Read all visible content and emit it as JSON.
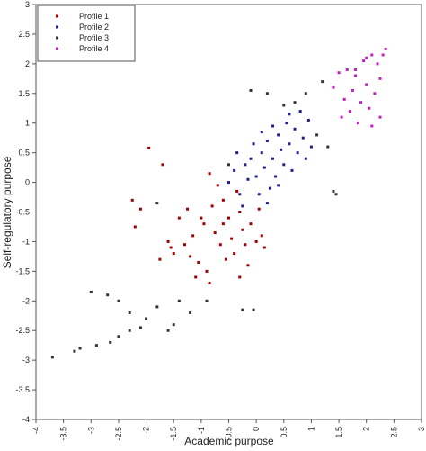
{
  "chart_data": {
    "type": "scatter",
    "x_label": "Academic purpose",
    "y_label": "Self-regulatory purpose",
    "xlim": [
      -4,
      3
    ],
    "ylim": [
      -4,
      3
    ],
    "xticks": [
      -4,
      -3.5,
      -3,
      -2.5,
      -2,
      -1.5,
      -1,
      -0.5,
      0,
      0.5,
      1,
      1.5,
      2,
      2.5,
      3
    ],
    "yticks": [
      -4,
      -3.5,
      -3,
      -2.5,
      -2,
      -1.5,
      -1,
      -0.5,
      0,
      0.5,
      1,
      1.5,
      2,
      2.5,
      3
    ],
    "legend": "upper-left",
    "series": [
      {
        "name": "Profile 1",
        "color": "#a00000",
        "x": [
          -1.95,
          -1.7,
          -2.25,
          -2.1,
          -2.2,
          -1.6,
          -1.55,
          -1.75,
          -1.5,
          -1.3,
          -1.2,
          -1.05,
          -0.9,
          -1.1,
          -0.85,
          -1.0,
          -0.95,
          -0.8,
          -0.75,
          -0.6,
          -0.5,
          -0.45,
          -0.4,
          -0.3,
          -0.25,
          -0.2,
          -0.15,
          -0.1,
          0.0,
          0.1,
          0.15,
          -0.65,
          -0.55,
          -0.35,
          -0.7,
          -0.85,
          -1.15,
          -1.25,
          -0.3,
          0.05,
          -0.6,
          -1.4
        ],
        "values": [
          0.58,
          0.3,
          -0.3,
          -0.45,
          -0.75,
          -1.0,
          -1.1,
          -1.3,
          -1.2,
          -1.05,
          -1.25,
          -1.35,
          -1.5,
          -1.6,
          -1.7,
          -0.6,
          -0.7,
          -0.4,
          -0.85,
          -0.3,
          -0.6,
          -0.95,
          -1.2,
          -0.5,
          -0.8,
          -1.05,
          -1.4,
          -0.7,
          -1.0,
          -0.9,
          -1.1,
          -1.05,
          -1.3,
          -0.15,
          -0.05,
          0.15,
          -0.9,
          -0.45,
          -1.6,
          -0.45,
          -0.7,
          -0.6
        ]
      },
      {
        "name": "Profile 2",
        "color": "#20208c",
        "x": [
          -0.5,
          -0.4,
          -0.3,
          -0.2,
          -0.15,
          -0.1,
          0.0,
          0.05,
          0.1,
          0.15,
          0.2,
          0.25,
          0.3,
          0.35,
          0.4,
          0.45,
          0.5,
          0.55,
          0.6,
          0.65,
          0.7,
          0.75,
          0.8,
          0.85,
          0.9,
          0.95,
          1.0,
          -0.05,
          0.2,
          -0.25,
          0.4,
          0.1,
          0.6,
          -0.35,
          0.3
        ],
        "values": [
          0.0,
          0.2,
          -0.2,
          0.3,
          0.05,
          0.4,
          0.1,
          -0.2,
          0.5,
          0.25,
          0.7,
          -0.1,
          0.4,
          0.1,
          0.8,
          0.55,
          0.3,
          1.0,
          0.65,
          0.2,
          0.9,
          0.5,
          1.2,
          0.75,
          0.4,
          1.05,
          0.6,
          0.65,
          -0.35,
          -0.4,
          -0.05,
          0.85,
          1.15,
          0.5,
          0.95
        ]
      },
      {
        "name": "Profile 3",
        "color": "#333333",
        "x": [
          -3.7,
          -3.3,
          -3.2,
          -2.9,
          -2.65,
          -2.5,
          -2.3,
          -2.1,
          -3.0,
          -2.7,
          -2.5,
          -2.3,
          -2.0,
          -1.8,
          -1.6,
          -1.5,
          -1.2,
          -0.9,
          -0.25,
          -0.05,
          -1.4,
          -0.5,
          -0.1,
          0.7,
          0.2,
          1.1,
          1.3,
          1.45,
          1.4,
          -1.8,
          0.9,
          1.2,
          0.5
        ],
        "values": [
          -2.95,
          -2.85,
          -2.8,
          -2.75,
          -2.7,
          -2.6,
          -2.5,
          -2.45,
          -1.85,
          -1.9,
          -2.0,
          -2.2,
          -2.3,
          -2.1,
          -2.5,
          -2.4,
          -2.2,
          -2.0,
          -2.15,
          -2.15,
          -2.0,
          0.3,
          1.55,
          1.35,
          1.5,
          0.8,
          0.6,
          -0.2,
          -0.15,
          -0.35,
          1.5,
          1.7,
          1.3
        ]
      },
      {
        "name": "Profile 4",
        "color": "#c020c0",
        "x": [
          1.4,
          1.5,
          1.6,
          1.65,
          1.7,
          1.75,
          1.8,
          1.85,
          1.9,
          1.95,
          2.0,
          2.05,
          2.1,
          2.15,
          2.2,
          2.25,
          2.3,
          2.35,
          2.25,
          2.1,
          1.55,
          1.8,
          2.0
        ],
        "values": [
          1.6,
          1.85,
          1.4,
          1.9,
          1.2,
          1.55,
          1.8,
          1.0,
          1.35,
          2.05,
          1.65,
          1.25,
          2.15,
          1.5,
          2.0,
          1.75,
          2.15,
          2.25,
          1.1,
          0.95,
          1.1,
          1.9,
          2.1
        ]
      }
    ]
  }
}
